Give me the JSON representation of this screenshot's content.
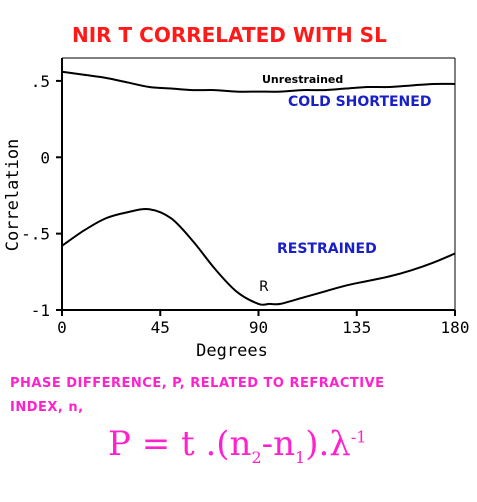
{
  "chart_data": {
    "type": "line",
    "title": "NIR T CORRELATED WITH SL",
    "xlabel": "Degrees",
    "ylabel": "Correlation",
    "xlim": [
      0,
      180
    ],
    "ylim": [
      -1,
      0.65
    ],
    "x_ticks": [
      "0",
      "45",
      "90",
      "135",
      "180"
    ],
    "y_ticks": [
      ".5",
      "0",
      "-.5",
      "-1"
    ],
    "series": [
      {
        "name": "Unrestrained",
        "x": [
          0,
          10,
          20,
          30,
          40,
          50,
          60,
          70,
          80,
          90,
          100,
          110,
          120,
          130,
          140,
          150,
          160,
          170,
          180
        ],
        "y": [
          0.56,
          0.54,
          0.52,
          0.49,
          0.46,
          0.45,
          0.44,
          0.44,
          0.43,
          0.43,
          0.43,
          0.44,
          0.44,
          0.45,
          0.46,
          0.46,
          0.47,
          0.48,
          0.48
        ]
      },
      {
        "name": "R",
        "x": [
          0,
          10,
          20,
          30,
          40,
          50,
          60,
          70,
          80,
          90,
          95,
          100,
          110,
          120,
          130,
          140,
          150,
          160,
          170,
          180
        ],
        "y": [
          -0.58,
          -0.48,
          -0.4,
          -0.36,
          -0.34,
          -0.4,
          -0.55,
          -0.73,
          -0.88,
          -0.96,
          -0.96,
          -0.96,
          -0.92,
          -0.88,
          -0.84,
          -0.81,
          -0.78,
          -0.74,
          -0.69,
          -0.63
        ]
      }
    ],
    "annotations": {
      "unrestrained": "Unrestrained",
      "cold_shortened": "COLD SHORTENED",
      "restrained": "RESTRAINED",
      "r_label": "R"
    }
  },
  "notes": {
    "line1": "PHASE DIFFERENCE, P, RELATED TO REFRACTIVE",
    "line2": "INDEX, n,",
    "formula": {
      "p": "P",
      "eq": " = t .(n",
      "sub2": "2",
      "minus": "-n",
      "sub1": "1",
      "close": ").λ",
      "exp": "-1"
    }
  },
  "colors": {
    "title": "#ff1a1a",
    "annotation_blue": "#1a20c8",
    "note_magenta": "#ff22cc",
    "axis": "#000000"
  }
}
